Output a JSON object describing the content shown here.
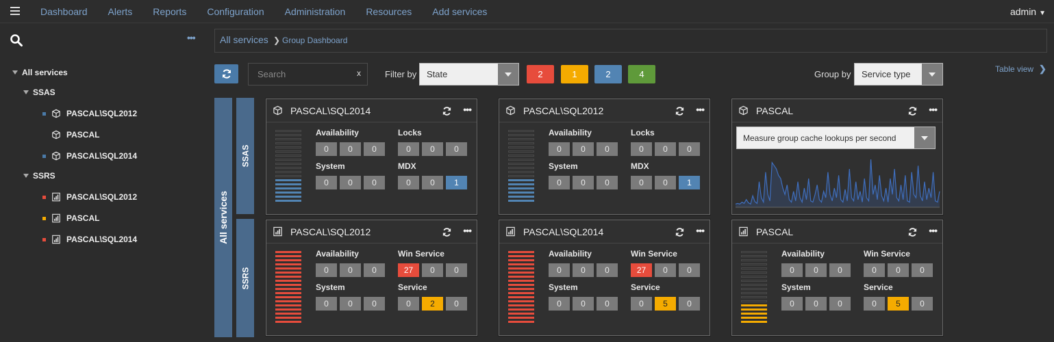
{
  "nav": {
    "links": [
      "Dashboard",
      "Alerts",
      "Reports",
      "Configuration",
      "Administration",
      "Resources",
      "Add services"
    ],
    "user": "admin"
  },
  "sidebar": {
    "tree": [
      {
        "label": "All services",
        "level": 0
      },
      {
        "label": "SSAS",
        "level": 1
      },
      {
        "label": "PASCAL\\SQL2012",
        "level": 2,
        "icon": "cube-icon",
        "status": "#4a7aa8"
      },
      {
        "label": "PASCAL",
        "level": 2,
        "icon": "cube-icon",
        "status": ""
      },
      {
        "label": "PASCAL\\SQL2014",
        "level": 2,
        "icon": "cube-icon",
        "status": "#4a7aa8"
      },
      {
        "label": "SSRS",
        "level": 1
      },
      {
        "label": "PASCAL\\SQL2012",
        "level": 2,
        "icon": "report-icon",
        "status": "#e74c3c"
      },
      {
        "label": "PASCAL",
        "level": 2,
        "icon": "report-icon",
        "status": "#f5ab00"
      },
      {
        "label": "PASCAL\\SQL2014",
        "level": 2,
        "icon": "report-icon",
        "status": "#e74c3c"
      }
    ]
  },
  "breadcrumb": {
    "root": "All services",
    "current": "Group Dashboard"
  },
  "toolbar": {
    "search_placeholder": "Search",
    "search_clear": "x",
    "filter_label": "Filter by",
    "filter_value": "State",
    "badges": [
      {
        "value": "2",
        "color": "#e74c3c"
      },
      {
        "value": "1",
        "color": "#f5ab00"
      },
      {
        "value": "2",
        "color": "#5284b3"
      },
      {
        "value": "4",
        "color": "#5f9a3a"
      }
    ],
    "group_label": "Group by",
    "group_value": "Service type",
    "table_view": "Table view"
  },
  "groups": {
    "all": "All services",
    "ssas": "SSAS",
    "ssrs": "SSRS"
  },
  "cards": [
    {
      "title": "PASCAL\\SQL2014",
      "icon": "cube-icon",
      "bar_color": "#5284b3",
      "bar_level": 0.35,
      "metrics": [
        {
          "label": "Availability",
          "values": [
            "0",
            "0",
            "0"
          ],
          "colors": [
            "",
            "",
            ""
          ]
        },
        {
          "label": "Locks",
          "values": [
            "0",
            "0",
            "0"
          ],
          "colors": [
            "",
            "",
            ""
          ]
        },
        {
          "label": "System",
          "values": [
            "0",
            "0",
            "0"
          ],
          "colors": [
            "",
            "",
            ""
          ]
        },
        {
          "label": "MDX",
          "values": [
            "0",
            "0",
            "1"
          ],
          "colors": [
            "",
            "",
            "blue"
          ]
        }
      ]
    },
    {
      "title": "PASCAL\\SQL2012",
      "icon": "cube-icon",
      "bar_color": "#5284b3",
      "bar_level": 0.35,
      "metrics": [
        {
          "label": "Availability",
          "values": [
            "0",
            "0",
            "0"
          ],
          "colors": [
            "",
            "",
            ""
          ]
        },
        {
          "label": "Locks",
          "values": [
            "0",
            "0",
            "0"
          ],
          "colors": [
            "",
            "",
            ""
          ]
        },
        {
          "label": "System",
          "values": [
            "0",
            "0",
            "0"
          ],
          "colors": [
            "",
            "",
            ""
          ]
        },
        {
          "label": "MDX",
          "values": [
            "0",
            "0",
            "1"
          ],
          "colors": [
            "",
            "",
            "blue"
          ]
        }
      ]
    },
    {
      "title": "PASCAL",
      "icon": "cube-icon",
      "chart_select": "Measure group cache lookups per second"
    },
    {
      "title": "PASCAL\\SQL2012",
      "icon": "report-icon",
      "bar_color": "#e74c3c",
      "bar_level": 1.0,
      "metrics": [
        {
          "label": "Availability",
          "values": [
            "0",
            "0",
            "0"
          ],
          "colors": [
            "",
            "",
            ""
          ]
        },
        {
          "label": "Win Service",
          "values": [
            "27",
            "0",
            "0"
          ],
          "colors": [
            "red",
            "",
            ""
          ]
        },
        {
          "label": "System",
          "values": [
            "0",
            "0",
            "0"
          ],
          "colors": [
            "",
            "",
            ""
          ]
        },
        {
          "label": "Service",
          "values": [
            "0",
            "2",
            "0"
          ],
          "colors": [
            "",
            "yellow",
            ""
          ]
        }
      ]
    },
    {
      "title": "PASCAL\\SQL2014",
      "icon": "report-icon",
      "bar_color": "#e74c3c",
      "bar_level": 1.0,
      "metrics": [
        {
          "label": "Availability",
          "values": [
            "0",
            "0",
            "0"
          ],
          "colors": [
            "",
            "",
            ""
          ]
        },
        {
          "label": "Win Service",
          "values": [
            "27",
            "0",
            "0"
          ],
          "colors": [
            "red",
            "",
            ""
          ]
        },
        {
          "label": "System",
          "values": [
            "0",
            "0",
            "0"
          ],
          "colors": [
            "",
            "",
            ""
          ]
        },
        {
          "label": "Service",
          "values": [
            "0",
            "5",
            "0"
          ],
          "colors": [
            "",
            "yellow",
            ""
          ]
        }
      ]
    },
    {
      "title": "PASCAL",
      "icon": "report-icon",
      "bar_color": "#f5ab00",
      "bar_level": 0.3,
      "metrics": [
        {
          "label": "Availability",
          "values": [
            "0",
            "0",
            "0"
          ],
          "colors": [
            "",
            "",
            ""
          ]
        },
        {
          "label": "Win Service",
          "values": [
            "0",
            "0",
            "0"
          ],
          "colors": [
            "",
            "",
            ""
          ]
        },
        {
          "label": "System",
          "values": [
            "0",
            "0",
            "0"
          ],
          "colors": [
            "",
            "",
            ""
          ]
        },
        {
          "label": "Service",
          "values": [
            "0",
            "5",
            "0"
          ],
          "colors": [
            "",
            "yellow",
            ""
          ]
        }
      ]
    }
  ],
  "sparkline": [
    5,
    6,
    5,
    8,
    6,
    12,
    7,
    5,
    18,
    9,
    6,
    40,
    15,
    8,
    55,
    20,
    10,
    70,
    65,
    60,
    50,
    45,
    30,
    20,
    35,
    12,
    8,
    25,
    10,
    40,
    15,
    8,
    30,
    12,
    45,
    10,
    8,
    20,
    35,
    12,
    8,
    25,
    15,
    55,
    20,
    10,
    30,
    15,
    50,
    12,
    8,
    28,
    10,
    60,
    15,
    10,
    40,
    12,
    25,
    8,
    45,
    15,
    10,
    75,
    20,
    35,
    12,
    50,
    18,
    10,
    30,
    8,
    45,
    20,
    60,
    15,
    10,
    35,
    12,
    50,
    10,
    8,
    55,
    20,
    15,
    65,
    18,
    10,
    40,
    12,
    30,
    15,
    55,
    10,
    8,
    25
  ]
}
